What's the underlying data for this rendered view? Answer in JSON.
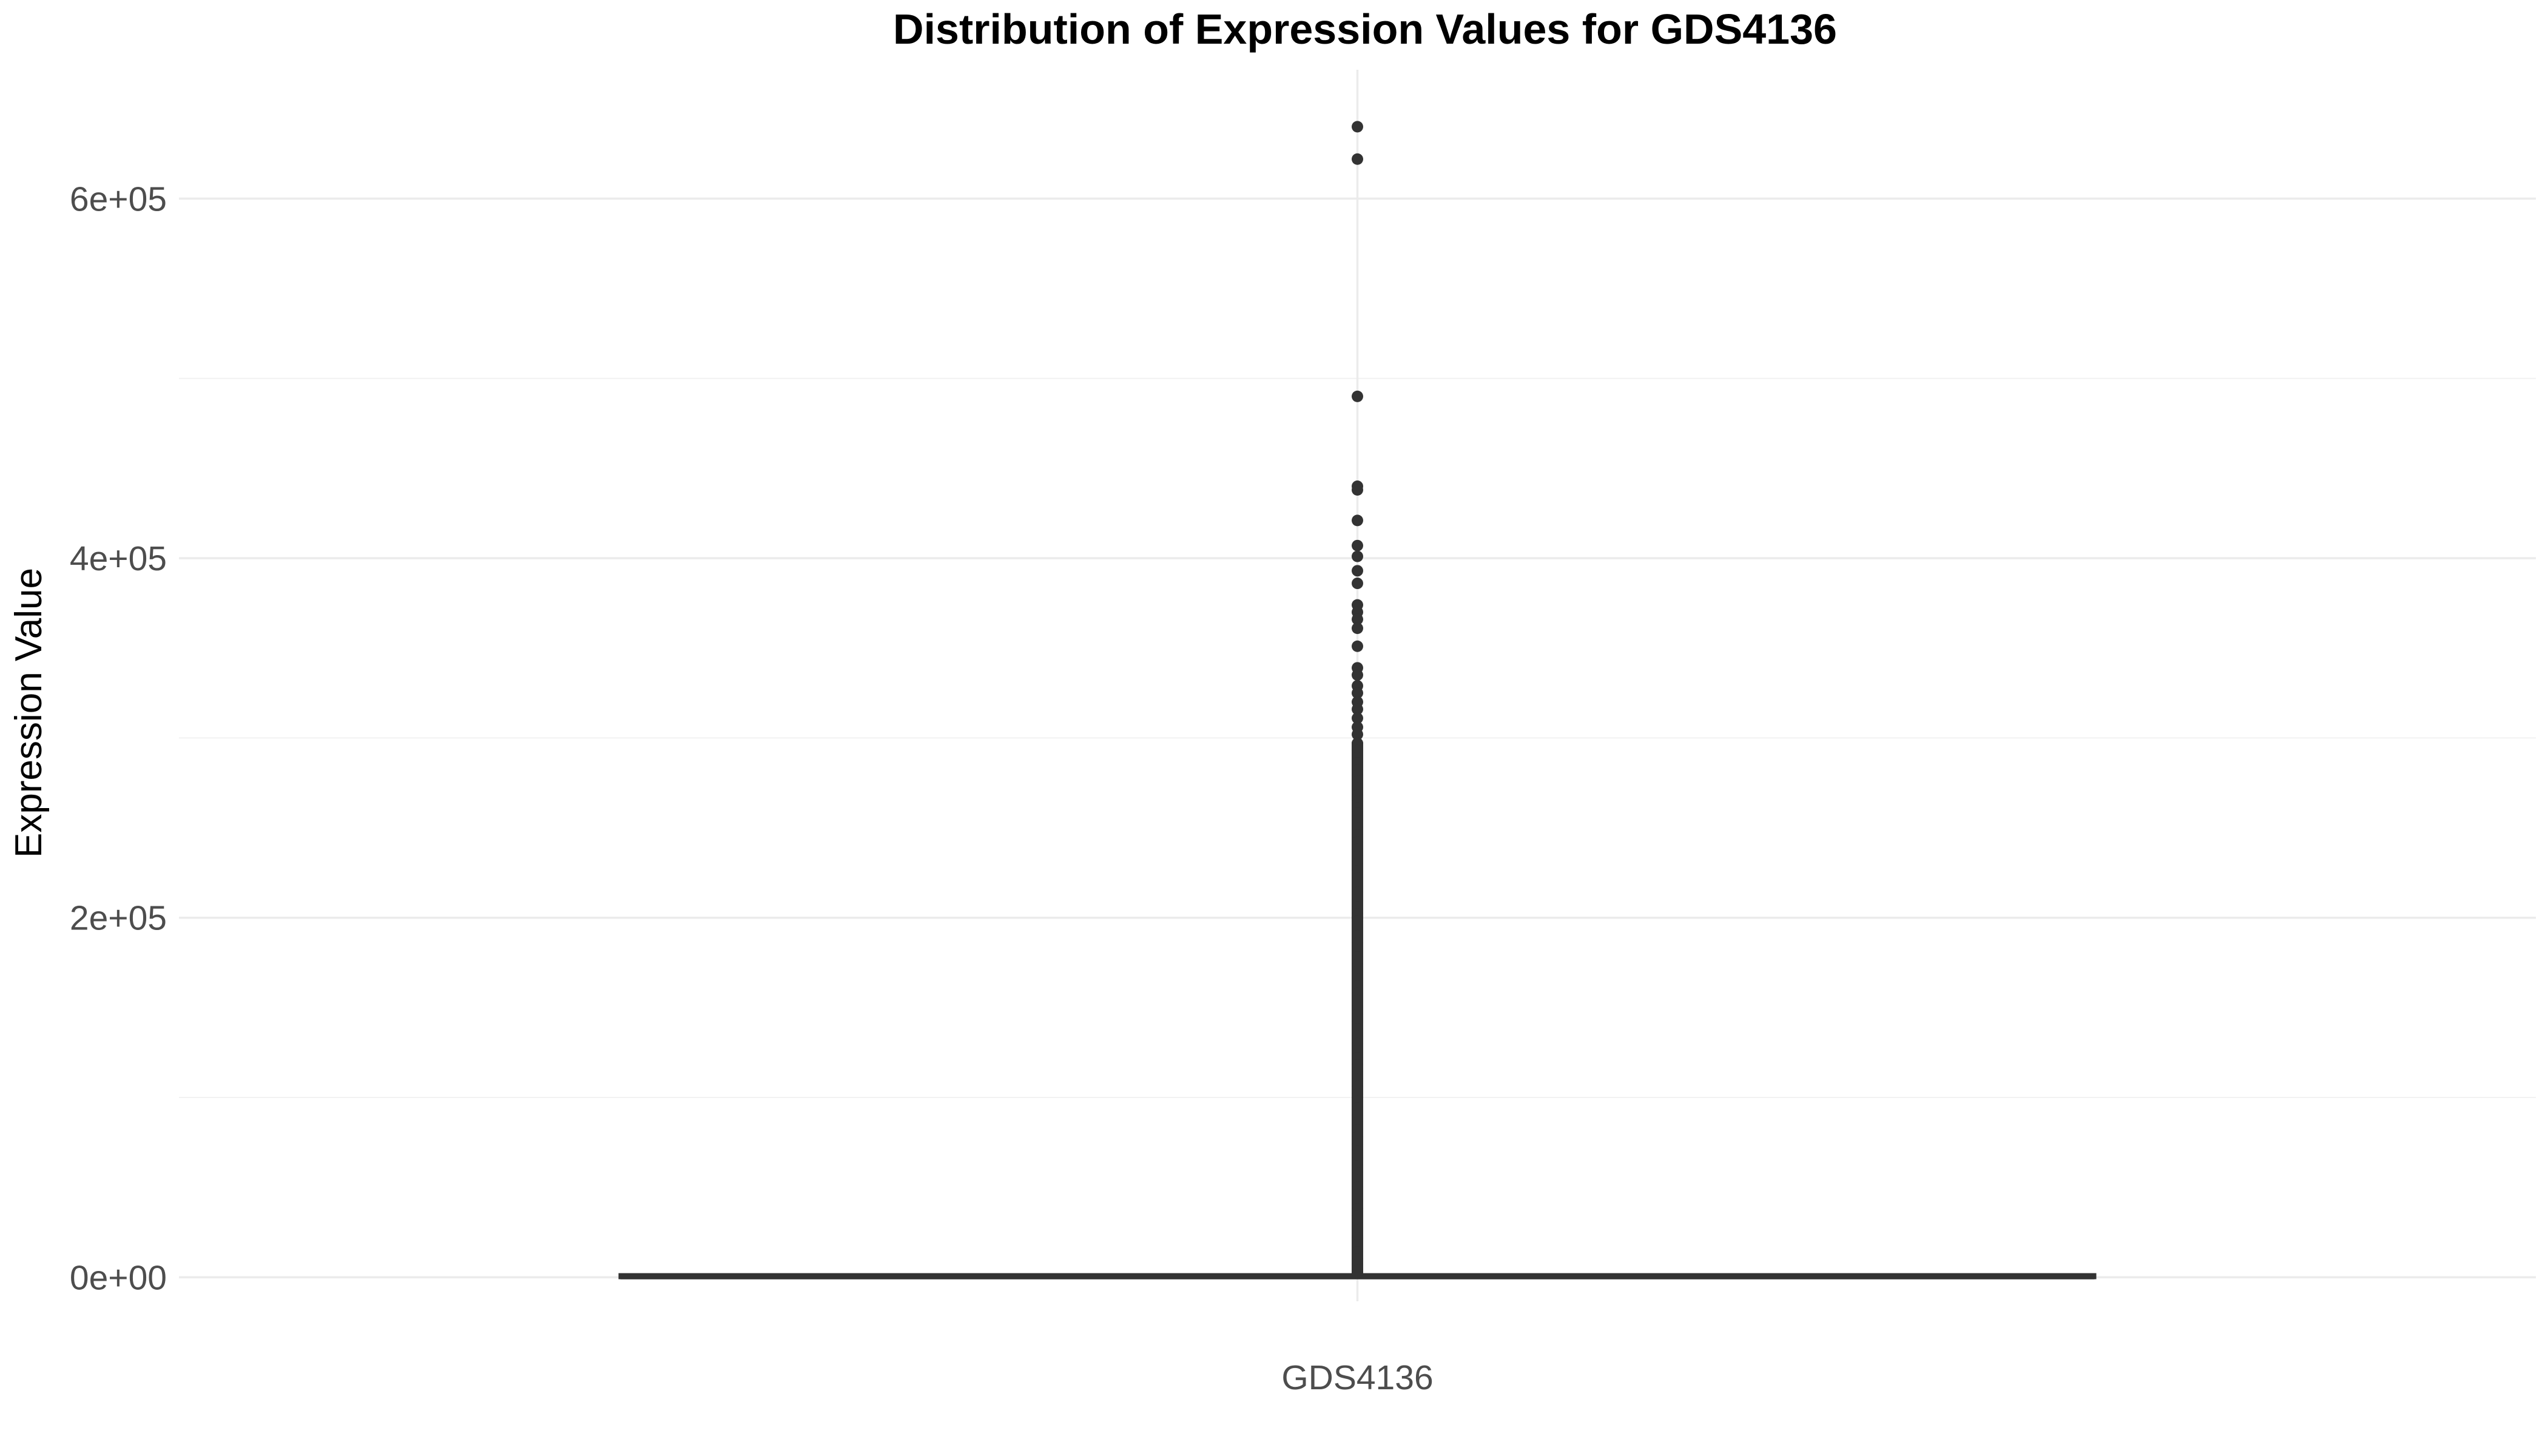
{
  "chart_data": {
    "type": "boxplot",
    "title": "Distribution of Expression Values for GDS4136",
    "xlabel": "",
    "ylabel": "Expression Value",
    "categories": [
      "GDS4136"
    ],
    "ylim": [
      -10000,
      670000
    ],
    "yticks": [
      {
        "value": 0,
        "label": "0e+00"
      },
      {
        "value": 200000,
        "label": "2e+05"
      },
      {
        "value": 400000,
        "label": "4e+05"
      },
      {
        "value": 600000,
        "label": "6e+05"
      }
    ],
    "minor_yticks": [
      100000,
      300000,
      500000
    ],
    "grid": true,
    "legend": "none",
    "box": {
      "category": "GDS4136",
      "q1": 80,
      "median": 200,
      "q3": 600,
      "whisker_low": 0,
      "whisker_high": 1400
    },
    "outliers": [
      640000,
      622000,
      490000,
      440000,
      438000,
      421000,
      407000,
      401000,
      393000,
      386000,
      374000,
      370000,
      366000,
      361000,
      351000,
      339000,
      335000,
      329000,
      325000,
      320000,
      316000,
      311000,
      306000,
      302000,
      297000,
      293000,
      289000,
      286000,
      282000,
      279000,
      276000,
      272000,
      268000,
      265000,
      261000,
      258000,
      254000,
      250000,
      246000,
      242000,
      238000,
      234000,
      230000,
      226000,
      222000,
      218000,
      214000,
      210000,
      206000,
      202000,
      198000,
      194000,
      190000,
      186000,
      182000,
      178000,
      174000,
      170000,
      166000,
      162000,
      158000,
      154000,
      150000,
      146000,
      142000,
      138000,
      134000,
      130000,
      126000,
      122000,
      118000,
      114000,
      110000,
      106000,
      102000,
      98000,
      94000,
      90000,
      86000,
      82000,
      78000,
      74000,
      70000,
      66000,
      62000,
      58000,
      54000,
      50000,
      46000,
      42000,
      38000,
      34000,
      30000,
      26000,
      22000,
      18000,
      14000,
      10000,
      7000,
      4000,
      2500
    ],
    "colors": {
      "box": "#333333",
      "outlier": "#333333",
      "grid": "#ebebeb"
    }
  }
}
